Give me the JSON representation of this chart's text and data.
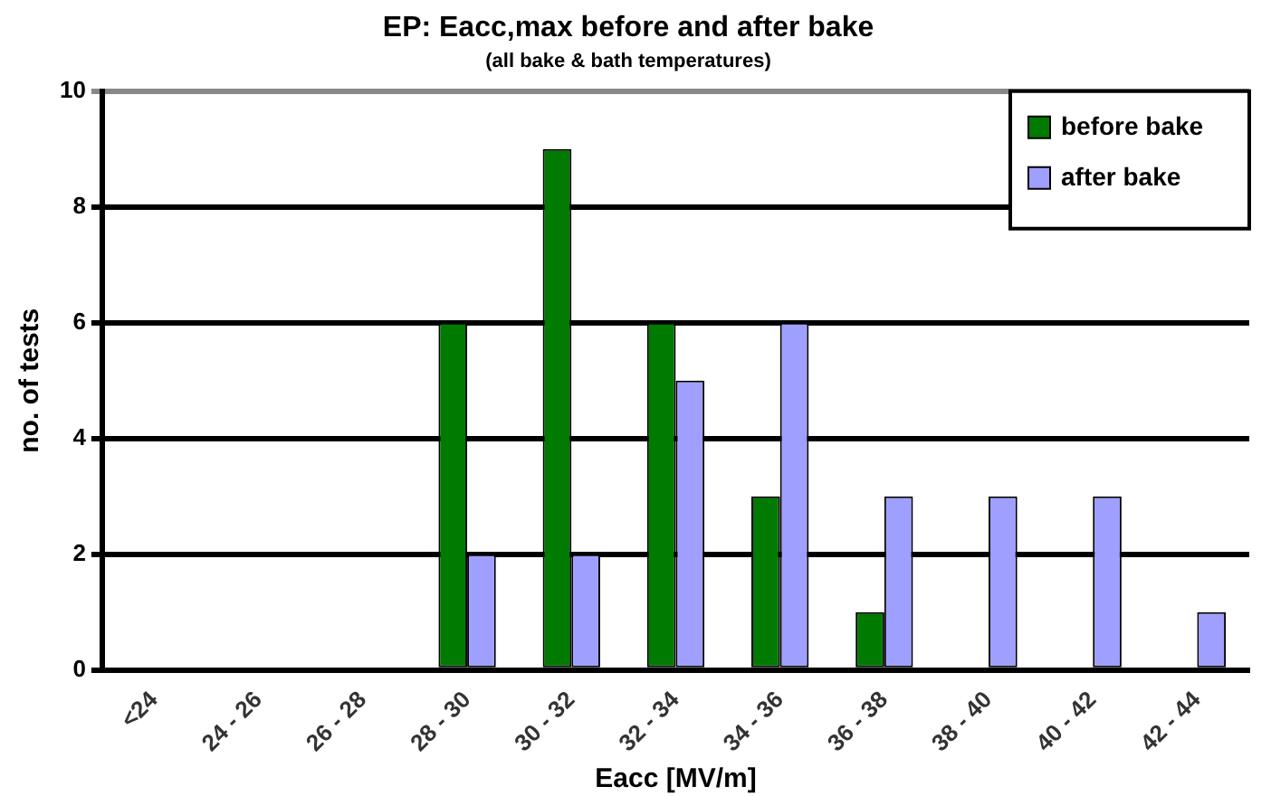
{
  "chart_data": {
    "type": "bar",
    "title": "EP: Eacc,max before and after bake",
    "subtitle": "(all bake & bath temperatures)",
    "xlabel": "Eacc [MV/m]",
    "ylabel": "no. of tests",
    "categories": [
      "<24",
      "24 - 26",
      "26 - 28",
      "28 - 30",
      "30 - 32",
      "32 - 34",
      "34 - 36",
      "36 - 38",
      "38 - 40",
      "40 - 42",
      "42 - 44"
    ],
    "series": [
      {
        "name": "before bake",
        "color": "#007a00",
        "values": [
          0,
          0,
          0,
          6,
          9,
          6,
          3,
          1,
          0,
          0,
          0
        ]
      },
      {
        "name": "after bake",
        "color": "#9f9fff",
        "values": [
          0,
          0,
          0,
          2,
          2,
          5,
          6,
          3,
          3,
          3,
          1
        ]
      }
    ],
    "ylim": [
      0,
      10
    ],
    "yticks": [
      0,
      2,
      4,
      6,
      8,
      10
    ],
    "grid": "y",
    "legend": "top right"
  }
}
